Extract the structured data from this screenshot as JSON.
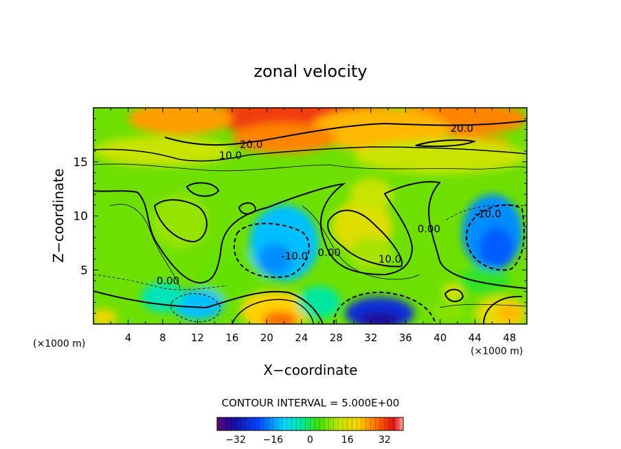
{
  "chart_data": {
    "type": "heatmap",
    "title": "zonal velocity",
    "xlabel": "X−coordinate",
    "ylabel": "Z−coordinate",
    "x_unit_left": "(×1000 m)",
    "x_unit_right": "(×1000 m)",
    "xlim": [
      0,
      50
    ],
    "ylim": [
      0,
      20
    ],
    "x_ticks": [
      4,
      8,
      12,
      16,
      20,
      24,
      28,
      32,
      36,
      40,
      44,
      48
    ],
    "y_ticks": [
      5,
      10,
      15
    ],
    "contour_interval_text": "CONTOUR INTERVAL = 5.000E+00",
    "colorbar": {
      "range": [
        -40,
        40
      ],
      "ticks": [
        -32,
        -16,
        0,
        16,
        32
      ],
      "tick_labels": [
        "−32",
        "−16",
        "0",
        "16",
        "32"
      ]
    },
    "contour_labels": [
      {
        "text": "20.0",
        "x": 18.2,
        "y": 16.6
      },
      {
        "text": "20.0",
        "x": 42.5,
        "y": 18.1
      },
      {
        "text": "10.0",
        "x": 15.8,
        "y": 15.6
      },
      {
        "text": "0.00",
        "x": 8.6,
        "y": 4.0
      },
      {
        "text": "-10.0",
        "x": 23.2,
        "y": 6.3
      },
      {
        "text": "0.00",
        "x": 27.2,
        "y": 6.6
      },
      {
        "text": "10.0",
        "x": 34.2,
        "y": 6.0
      },
      {
        "text": "0.00",
        "x": 38.7,
        "y": 8.8
      },
      {
        "text": "-10.0",
        "x": 45.5,
        "y": 10.2
      }
    ],
    "field_blobs": [
      {
        "x": 24,
        "y": 19.2,
        "rx": 12,
        "ry": 1.6,
        "v": 32
      },
      {
        "x": 10,
        "y": 19.0,
        "rx": 6,
        "ry": 1.5,
        "v": 24
      },
      {
        "x": 42,
        "y": 19.0,
        "rx": 8,
        "ry": 1.6,
        "v": 26
      },
      {
        "x": 33,
        "y": 18.0,
        "rx": 8,
        "ry": 2.0,
        "v": 22
      },
      {
        "x": 22,
        "y": 17.2,
        "rx": 6,
        "ry": 1.4,
        "v": 26
      },
      {
        "x": 44,
        "y": 16.6,
        "rx": 4,
        "ry": 0.8,
        "v": 24
      },
      {
        "x": 40,
        "y": 15.5,
        "rx": 10,
        "ry": 1.6,
        "v": 12
      },
      {
        "x": 8,
        "y": 16.0,
        "rx": 8,
        "ry": 1.4,
        "v": 12
      },
      {
        "x": 10,
        "y": 9.5,
        "rx": 3.2,
        "ry": 2.5,
        "v": 9
      },
      {
        "x": 31,
        "y": 9.0,
        "rx": 3.5,
        "ry": 2.5,
        "v": 15
      },
      {
        "x": 32,
        "y": 6.5,
        "rx": 2.5,
        "ry": 1.5,
        "v": 10
      },
      {
        "x": 32,
        "y": 12.0,
        "rx": 2.5,
        "ry": 1.5,
        "v": 12
      },
      {
        "x": 16,
        "y": 4.5,
        "rx": 4,
        "ry": 2.5,
        "v": 6
      },
      {
        "x": 22,
        "y": 7.5,
        "rx": 4,
        "ry": 3.5,
        "v": -14
      },
      {
        "x": 21,
        "y": 6.0,
        "rx": 2,
        "ry": 1.5,
        "v": -18
      },
      {
        "x": 46,
        "y": 8.5,
        "rx": 3.5,
        "ry": 3.5,
        "v": -18
      },
      {
        "x": 46.5,
        "y": 7.0,
        "rx": 2,
        "ry": 2,
        "v": -22
      },
      {
        "x": 12,
        "y": 1.8,
        "rx": 3,
        "ry": 1.4,
        "v": -14
      },
      {
        "x": 8,
        "y": 2.5,
        "rx": 2.5,
        "ry": 1.4,
        "v": -6
      },
      {
        "x": 33,
        "y": 1.0,
        "rx": 4,
        "ry": 1.5,
        "v": -28
      },
      {
        "x": 33,
        "y": 0.4,
        "rx": 2.5,
        "ry": 0.7,
        "v": -34
      },
      {
        "x": 21,
        "y": 1.2,
        "rx": 4,
        "ry": 1.8,
        "v": 20
      },
      {
        "x": 21.5,
        "y": 0.4,
        "rx": 2,
        "ry": 0.8,
        "v": 28
      },
      {
        "x": 47,
        "y": 1.0,
        "rx": 3,
        "ry": 1.6,
        "v": 16
      },
      {
        "x": 48,
        "y": 1.0,
        "rx": 1.5,
        "ry": 0.8,
        "v": 22
      },
      {
        "x": 41,
        "y": 1.2,
        "rx": 1.8,
        "ry": 1.0,
        "v": 8
      },
      {
        "x": 41.5,
        "y": 3.0,
        "rx": 1.2,
        "ry": 0.8,
        "v": 14
      },
      {
        "x": 1.2,
        "y": 0.6,
        "rx": 1.5,
        "ry": 0.8,
        "v": 18
      },
      {
        "x": 26,
        "y": 2.0,
        "rx": 2.5,
        "ry": 1.5,
        "v": -4
      },
      {
        "x": 45,
        "y": 4.0,
        "rx": 3,
        "ry": 1.2,
        "v": 2
      }
    ]
  }
}
